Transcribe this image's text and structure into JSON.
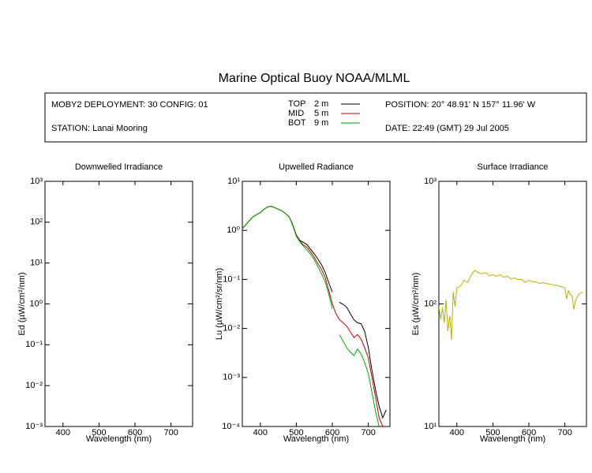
{
  "header": {
    "title": "Marine Optical Buoy NOAA/MLML",
    "deployment": "MOBY2 DEPLOYMENT: 30 CONFIG: 01",
    "station": "STATION: Lanai Mooring",
    "position": "POSITION: 20° 48.91' N   157° 11.96' W",
    "date": "DATE: 22:49 (GMT) 29 Jul 2005"
  },
  "chart_data": [
    {
      "type": "line",
      "title": "Downwelled Irradiance",
      "xlabel": "Wavelength (nm)",
      "ylabel": "Ed  (µW/cm²/nm)",
      "log_y": true,
      "xlim": [
        350,
        760
      ],
      "xticks": [
        400,
        500,
        600,
        700
      ],
      "ylim": [
        0.001,
        1000
      ],
      "yticks": [
        {
          "value": 1000,
          "label": "10³"
        },
        {
          "value": 100,
          "label": "10²"
        },
        {
          "value": 10,
          "label": "10¹"
        },
        {
          "value": 1,
          "label": "10⁰"
        },
        {
          "value": 0.1,
          "label": "10⁻¹"
        },
        {
          "value": 0.01,
          "label": "10⁻²"
        },
        {
          "value": 0.001,
          "label": "10⁻³"
        }
      ],
      "x": [],
      "series": []
    },
    {
      "type": "line",
      "title": "Upwelled Radiance",
      "xlabel": "Wavelength (nm)",
      "ylabel": "Lu  (µW/cm²/sr/nm)",
      "log_y": true,
      "xlim": [
        350,
        760
      ],
      "xticks": [
        400,
        500,
        600,
        700
      ],
      "ylim": [
        0.0001,
        10
      ],
      "yticks": [
        {
          "value": 10,
          "label": "10¹"
        },
        {
          "value": 1,
          "label": "10⁰"
        },
        {
          "value": 0.1,
          "label": "10⁻¹"
        },
        {
          "value": 0.01,
          "label": "10⁻²"
        },
        {
          "value": 0.001,
          "label": "10⁻³"
        },
        {
          "value": 0.0001,
          "label": "10⁻⁴"
        }
      ],
      "x": [
        350,
        360,
        370,
        380,
        390,
        400,
        410,
        420,
        430,
        440,
        450,
        460,
        470,
        480,
        490,
        500,
        510,
        520,
        530,
        540,
        550,
        560,
        570,
        580,
        590,
        600,
        610,
        620,
        630,
        640,
        650,
        660,
        670,
        680,
        690,
        700,
        710,
        720,
        730,
        740,
        750
      ],
      "series": [
        {
          "name": "TOP",
          "depth": "2 m",
          "color": "#000000",
          "values": [
            1.08,
            1.3,
            1.6,
            1.9,
            2.1,
            2.3,
            2.7,
            3.0,
            3.1,
            2.9,
            2.7,
            2.5,
            2.2,
            1.9,
            1.3,
            0.8,
            0.62,
            0.57,
            0.51,
            0.41,
            0.33,
            0.26,
            0.2,
            0.14,
            0.086,
            0.055,
            null,
            0.034,
            0.031,
            0.027,
            0.02,
            0.015,
            0.013,
            0.0125,
            0.0086,
            0.0041,
            0.0014,
            0.00055,
            0.00026,
            0.00015,
            0.00022
          ]
        },
        {
          "name": "MID",
          "depth": "5 m",
          "color": "#cc0000",
          "values": [
            1.08,
            1.3,
            1.6,
            1.9,
            2.1,
            2.3,
            2.7,
            3.0,
            3.1,
            2.9,
            2.7,
            2.5,
            2.2,
            1.9,
            1.3,
            0.78,
            0.6,
            0.5,
            0.45,
            0.36,
            0.28,
            0.21,
            0.16,
            0.11,
            0.06,
            0.032,
            0.02,
            0.015,
            0.013,
            0.011,
            0.0085,
            0.0065,
            0.0075,
            0.006,
            0.004,
            0.0025,
            0.001,
            0.0004,
            0.00015,
            0.0001,
            null
          ]
        },
        {
          "name": "BOT",
          "depth": "9 m",
          "color": "#00aa00",
          "values": [
            1.08,
            1.3,
            1.6,
            1.9,
            2.1,
            2.3,
            2.7,
            3.0,
            3.1,
            2.9,
            2.7,
            2.5,
            2.2,
            1.9,
            1.25,
            0.76,
            0.58,
            0.47,
            0.4,
            0.32,
            0.25,
            0.18,
            0.13,
            0.09,
            0.05,
            0.025,
            null,
            0.0074,
            0.0055,
            0.004,
            0.0033,
            0.0028,
            0.0038,
            0.003,
            0.002,
            0.0012,
            0.0005,
            0.0002,
            0.0001,
            null,
            null
          ]
        }
      ]
    },
    {
      "type": "line",
      "title": "Surface Irradiance",
      "xlabel": "Wavelength (nm)",
      "ylabel": "Es  (µW/cm²/nm)",
      "log_y": true,
      "xlim": [
        350,
        760
      ],
      "xticks": [
        400,
        500,
        600,
        700
      ],
      "ylim": [
        10,
        1000
      ],
      "yticks": [
        {
          "value": 1000,
          "label": "10³"
        },
        {
          "value": 100,
          "label": "10²"
        },
        {
          "value": 10,
          "label": "10¹"
        }
      ],
      "x": [
        350,
        355,
        360,
        365,
        370,
        375,
        380,
        385,
        390,
        395,
        400,
        410,
        420,
        430,
        440,
        450,
        460,
        470,
        480,
        490,
        500,
        510,
        520,
        530,
        540,
        550,
        560,
        570,
        580,
        590,
        600,
        610,
        620,
        630,
        640,
        650,
        660,
        670,
        680,
        690,
        700,
        705,
        710,
        715,
        720,
        725,
        730,
        740,
        750
      ],
      "series": [
        {
          "name": "Es",
          "color": "#b8b000",
          "values": [
            95,
            75,
            93,
            70,
            108,
            60,
            80,
            51,
            125,
            95,
            135,
            140,
            156,
            150,
            173,
            188,
            180,
            176,
            180,
            170,
            173,
            168,
            173,
            165,
            168,
            160,
            163,
            158,
            158,
            150,
            156,
            152,
            151,
            147,
            149,
            146,
            145,
            142,
            141,
            138,
            135,
            110,
            128,
            120,
            116,
            90,
            108,
            121,
            125
          ]
        }
      ]
    }
  ]
}
